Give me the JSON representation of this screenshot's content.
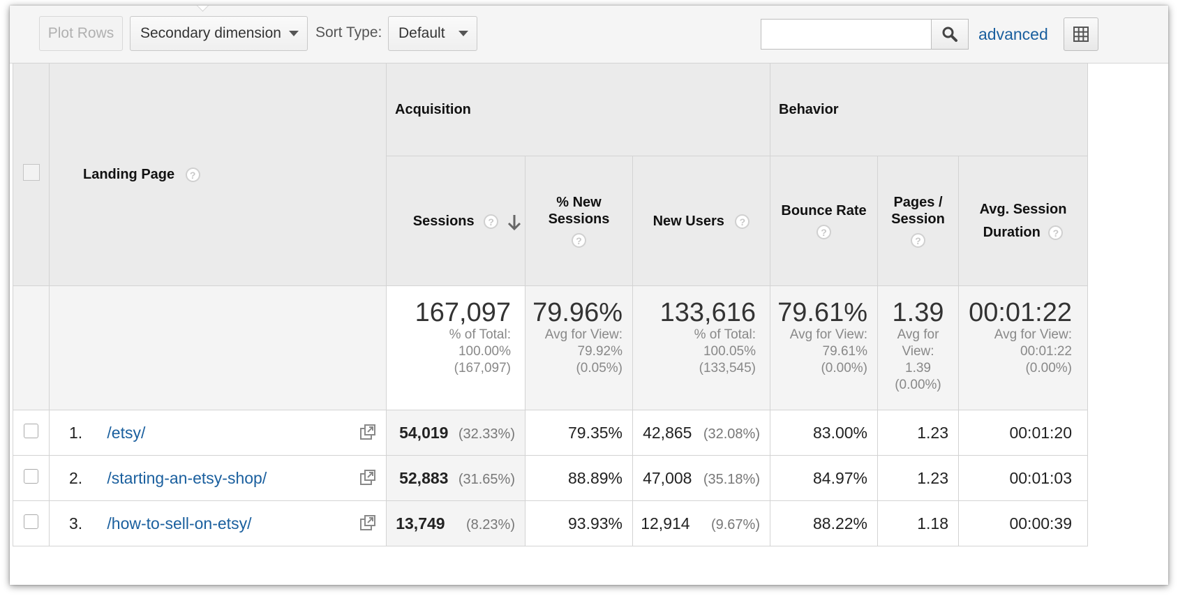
{
  "toolbar": {
    "plot_rows": "Plot Rows",
    "secondary_dimension": "Secondary dimension",
    "sort_type_label": "Sort Type:",
    "sort_type_value": "Default",
    "search_value": "",
    "advanced": "advanced"
  },
  "table": {
    "dimension_header": "Landing Page",
    "groups": {
      "acquisition": "Acquisition",
      "behavior": "Behavior"
    },
    "columns": {
      "sessions": "Sessions",
      "pct_new_sessions": "% New Sessions",
      "new_users": "New Users",
      "bounce_rate": "Bounce Rate",
      "pages_per_session": "Pages / Session",
      "avg_session_duration": "Avg. Session Duration"
    },
    "totals": {
      "sessions": {
        "value": "167,097",
        "line1": "% of Total:",
        "line2": "100.00%",
        "line3": "(167,097)"
      },
      "pct_new_sessions": {
        "value": "79.96%",
        "line1": "Avg for View:",
        "line2": "79.92%",
        "line3": "(0.05%)"
      },
      "new_users": {
        "value": "133,616",
        "line1": "% of Total:",
        "line2": "100.05%",
        "line3": "(133,545)"
      },
      "bounce_rate": {
        "value": "79.61%",
        "line1": "Avg for View:",
        "line2": "79.61%",
        "line3": "(0.00%)"
      },
      "pages_per_session": {
        "value": "1.39",
        "line1": "Avg for",
        "line2": "View:",
        "line3": "1.39",
        "line4": "(0.00%)"
      },
      "avg_session_duration": {
        "value": "00:01:22",
        "line1": "Avg for View:",
        "line2": "00:01:22",
        "line3": "(0.00%)"
      }
    },
    "rows": [
      {
        "index": "1.",
        "page": "/etsy/",
        "sessions": "54,019",
        "sessions_pct": "(32.33%)",
        "pct_new_sessions": "79.35%",
        "new_users": "42,865",
        "new_users_pct": "(32.08%)",
        "bounce_rate": "83.00%",
        "pages_per_session": "1.23",
        "avg_session_duration": "00:01:20"
      },
      {
        "index": "2.",
        "page": "/starting-an-etsy-shop/",
        "sessions": "52,883",
        "sessions_pct": "(31.65%)",
        "pct_new_sessions": "88.89%",
        "new_users": "47,008",
        "new_users_pct": "(35.18%)",
        "bounce_rate": "84.97%",
        "pages_per_session": "1.23",
        "avg_session_duration": "00:01:03"
      },
      {
        "index": "3.",
        "page": "/how-to-sell-on-etsy/",
        "sessions": "13,749",
        "sessions_pct": "(8.23%)",
        "pct_new_sessions": "93.93%",
        "new_users": "12,914",
        "new_users_pct": "(9.67%)",
        "bounce_rate": "88.22%",
        "pages_per_session": "1.18",
        "avg_session_duration": "00:00:39"
      }
    ]
  },
  "icons": {
    "search": "search-icon",
    "grid": "grid-view-icon",
    "help": "help-icon",
    "sort": "sort-descending-arrow-icon",
    "external": "external-link-icon"
  },
  "colors": {
    "link": "#1a5f9e",
    "header_bg": "#ebebeb",
    "sorted_column_bg": "#f4f4f4"
  }
}
